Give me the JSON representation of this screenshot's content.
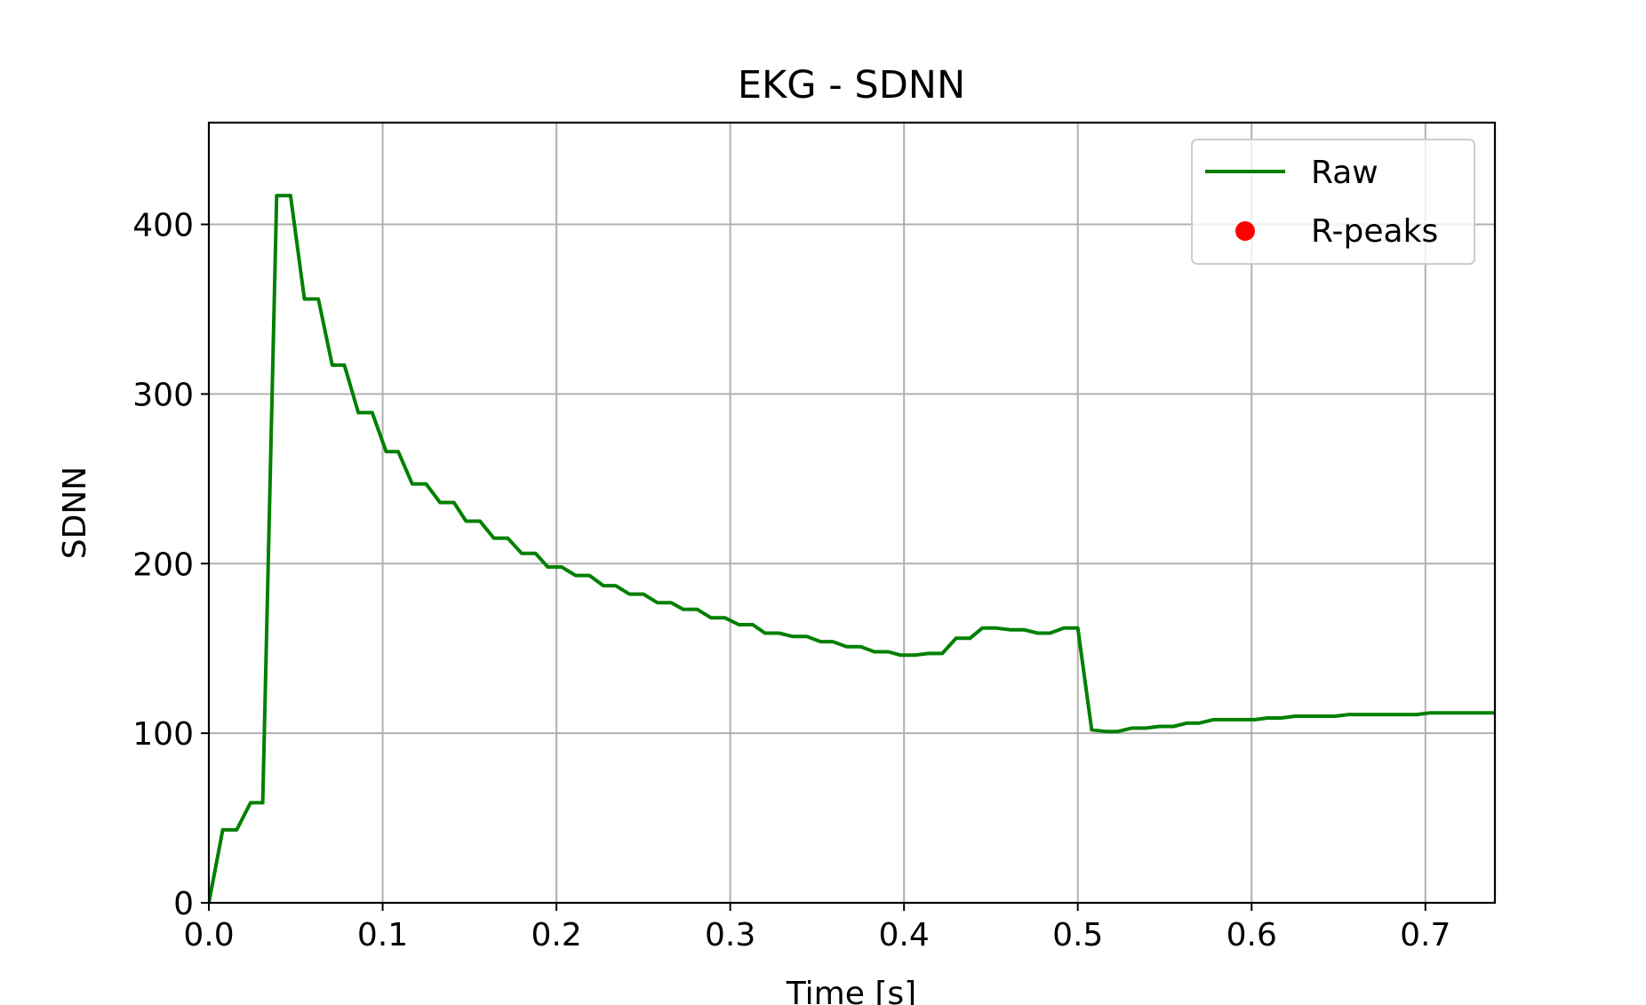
{
  "chart_data": {
    "type": "line",
    "title": "EKG - SDNN",
    "xlabel": "Time [s]",
    "ylabel": "SDNN",
    "xlim": [
      0.0,
      0.74
    ],
    "ylim": [
      0,
      460
    ],
    "xticks": [
      0.0,
      0.1,
      0.2,
      0.3,
      0.4,
      0.5,
      0.6,
      0.7
    ],
    "xtick_labels": [
      "0.0",
      "0.1",
      "0.2",
      "0.3",
      "0.4",
      "0.5",
      "0.6",
      "0.7"
    ],
    "yticks": [
      0,
      100,
      200,
      300,
      400
    ],
    "ytick_labels": [
      "0",
      "100",
      "200",
      "300",
      "400"
    ],
    "grid": true,
    "legend": {
      "position": "top-right",
      "entries": [
        {
          "label": "Raw",
          "marker": "line",
          "color": "#008000"
        },
        {
          "label": "R-peaks",
          "marker": "dot",
          "color": "#ff0000"
        }
      ]
    },
    "series": [
      {
        "name": "Raw",
        "color": "#008000",
        "x": [
          0.0,
          0.008,
          0.016,
          0.024,
          0.031,
          0.039,
          0.047,
          0.055,
          0.063,
          0.071,
          0.078,
          0.086,
          0.094,
          0.102,
          0.109,
          0.117,
          0.125,
          0.133,
          0.141,
          0.148,
          0.156,
          0.164,
          0.172,
          0.18,
          0.188,
          0.195,
          0.203,
          0.211,
          0.219,
          0.227,
          0.234,
          0.242,
          0.25,
          0.258,
          0.266,
          0.273,
          0.281,
          0.289,
          0.297,
          0.305,
          0.313,
          0.32,
          0.328,
          0.336,
          0.344,
          0.352,
          0.359,
          0.367,
          0.375,
          0.383,
          0.391,
          0.398,
          0.406,
          0.414,
          0.422,
          0.43,
          0.438,
          0.445,
          0.453,
          0.461,
          0.469,
          0.477,
          0.484,
          0.492,
          0.5,
          0.508,
          0.516,
          0.523,
          0.531,
          0.539,
          0.547,
          0.555,
          0.563,
          0.57,
          0.578,
          0.586,
          0.594,
          0.602,
          0.609,
          0.617,
          0.625,
          0.633,
          0.641,
          0.648,
          0.656,
          0.664,
          0.672,
          0.68,
          0.688,
          0.695,
          0.703,
          0.711,
          0.719,
          0.727,
          0.734,
          0.74
        ],
        "y": [
          0,
          43,
          43,
          59,
          59,
          417,
          417,
          356,
          356,
          317,
          317,
          289,
          289,
          266,
          266,
          247,
          247,
          236,
          236,
          225,
          225,
          215,
          215,
          206,
          206,
          198,
          198,
          193,
          193,
          187,
          187,
          182,
          182,
          177,
          177,
          173,
          173,
          168,
          168,
          164,
          164,
          159,
          159,
          157,
          157,
          154,
          154,
          151,
          151,
          148,
          148,
          146,
          146,
          147,
          147,
          156,
          156,
          162,
          162,
          161,
          161,
          159,
          159,
          162,
          162,
          102,
          101,
          101,
          103,
          103,
          104,
          104,
          106,
          106,
          108,
          108,
          108,
          108,
          109,
          109,
          110,
          110,
          110,
          110,
          111,
          111,
          111,
          111,
          111,
          111,
          112,
          112,
          112,
          112,
          112,
          112
        ]
      },
      {
        "name": "R-peaks",
        "color": "#ff0000",
        "x": [],
        "y": []
      }
    ]
  }
}
